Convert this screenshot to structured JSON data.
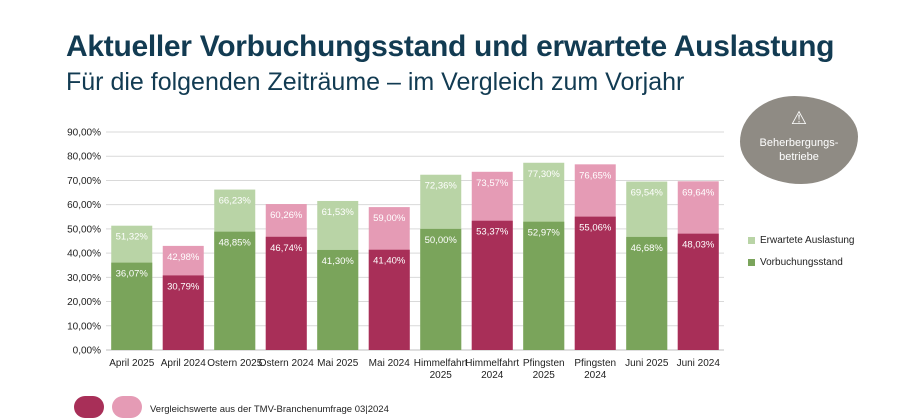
{
  "title": "Aktueller Vorbuchungsstand und erwartete Auslastung",
  "subtitle": "Für die folgenden Zeiträume – im Vergleich zum Vorjahr",
  "badge": {
    "icon": "⚠",
    "text": "Beherbergungs-\nbetriebe"
  },
  "legend": [
    {
      "label": "Erwartete Auslastung",
      "color": "#b9d4a6"
    },
    {
      "label": "Vorbuchungsstand",
      "color": "#7aa45b"
    }
  ],
  "footnote": "Vergleichswerte aus der TMV-Branchenumfrage 03|2024",
  "colors": {
    "green_dark": "#7aa45b",
    "green_light": "#b9d4a6",
    "red_dark": "#a82f58",
    "red_light": "#e59bb5",
    "title": "#123b52",
    "badge": "#8f8b84"
  },
  "chart_data": {
    "type": "bar",
    "stacked_overlay": true,
    "title": "Aktueller Vorbuchungsstand und erwartete Auslastung",
    "ylim": [
      0,
      90
    ],
    "yticks": [
      "0,00%",
      "10,00%",
      "20,00%",
      "30,00%",
      "40,00%",
      "50,00%",
      "60,00%",
      "70,00%",
      "80,00%",
      "90,00%"
    ],
    "categories": [
      {
        "label": [
          "April 2025"
        ],
        "group": "2025"
      },
      {
        "label": [
          "April 2024"
        ],
        "group": "2024"
      },
      {
        "label": [
          "Ostern 2025"
        ],
        "group": "2025"
      },
      {
        "label": [
          "Ostern 2024"
        ],
        "group": "2024"
      },
      {
        "label": [
          "Mai 2025"
        ],
        "group": "2025"
      },
      {
        "label": [
          "Mai 2024"
        ],
        "group": "2024"
      },
      {
        "label": [
          "Himmelfahrt",
          "2025"
        ],
        "group": "2025"
      },
      {
        "label": [
          "Himmelfahrt",
          "2024"
        ],
        "group": "2024"
      },
      {
        "label": [
          "Pfingsten",
          "2025"
        ],
        "group": "2025"
      },
      {
        "label": [
          "Pfingsten",
          "2024"
        ],
        "group": "2024"
      },
      {
        "label": [
          "Juni 2025"
        ],
        "group": "2025"
      },
      {
        "label": [
          "Juni 2024"
        ],
        "group": "2024"
      }
    ],
    "series": [
      {
        "name": "Erwartete Auslastung",
        "values": [
          51.32,
          42.98,
          66.23,
          60.26,
          61.53,
          59.0,
          72.36,
          73.57,
          77.3,
          76.65,
          69.54,
          69.64
        ],
        "labels": [
          "51,32%",
          "42,98%",
          "66,23%",
          "60,26%",
          "61,53%",
          "59,00%",
          "72,36%",
          "73,57%",
          "77,30%",
          "76,65%",
          "69,54%",
          "69,64%"
        ]
      },
      {
        "name": "Vorbuchungsstand",
        "values": [
          36.07,
          30.79,
          48.85,
          46.74,
          41.3,
          41.4,
          50.0,
          53.37,
          52.97,
          55.06,
          46.68,
          48.03
        ],
        "labels": [
          "36,07%",
          "30,79%",
          "48,85%",
          "46,74%",
          "41,30%",
          "41,40%",
          "50,00%",
          "53,37%",
          "52,97%",
          "55,06%",
          "46,68%",
          "48,03%"
        ]
      }
    ]
  }
}
